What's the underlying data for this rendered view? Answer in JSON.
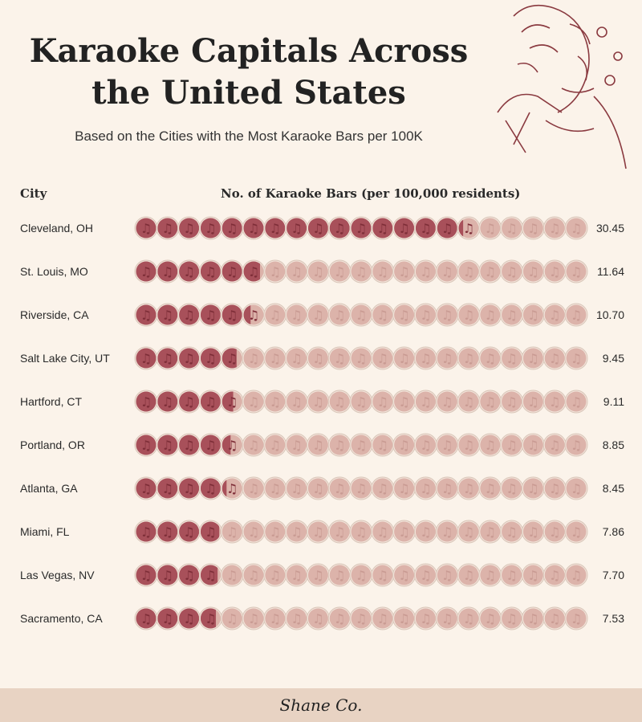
{
  "title": "Karaoke Capitals Across the United States",
  "subtitle": "Based on the Cities with the Most Karaoke Bars per 100K",
  "brand": "Shane Co.",
  "colors": {
    "filled": "#a8505a",
    "empty": "#dcb3aa",
    "background": "#fbf3ea",
    "footer": "#e8d3c3"
  },
  "icon": "music-note-circle-icon",
  "chart_data": {
    "type": "pictogram",
    "column_headers": {
      "city": "City",
      "value": "No. of Karaoke Bars (per 100,000 residents)"
    },
    "icons_per_row": 21,
    "categories": [
      "Cleveland, OH",
      "St. Louis, MO",
      "Riverside, CA",
      "Salt Lake City, UT",
      "Hartford, CT",
      "Portland, OR",
      "Atlanta, GA",
      "Miami, FL",
      "Las Vegas, NV",
      "Sacramento, CA"
    ],
    "values": [
      30.45,
      11.64,
      10.7,
      9.45,
      9.11,
      8.85,
      8.45,
      7.86,
      7.7,
      7.53
    ],
    "labels": [
      "30.45",
      "11.64",
      "10.70",
      "9.45",
      "9.11",
      "8.85",
      "8.45",
      "7.86",
      "7.70",
      "7.53"
    ]
  }
}
